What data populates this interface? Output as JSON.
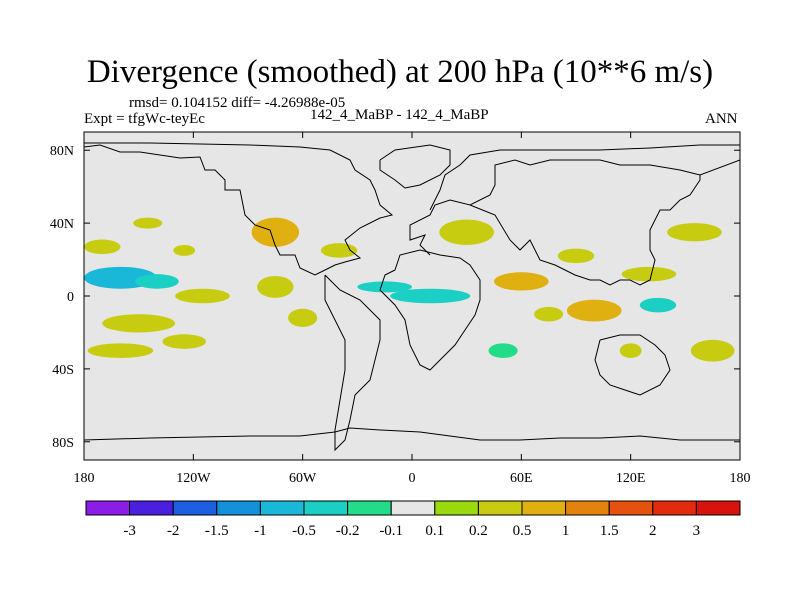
{
  "chart_data": {
    "type": "heatmap",
    "title": "Divergence (smoothed) at 200 hPa (10**6 m/s)",
    "stats_line": "rmsd= 0.104152 diff= -4.26988e-05",
    "experiment": "Expt = tfgWc-teyEc",
    "case_label": "142_4_MaBP - 142_4_MaBP",
    "period": "ANN",
    "x_range": [
      -180,
      180
    ],
    "y_range": [
      -90,
      90
    ],
    "x_ticks": [
      {
        "value": -180,
        "label": "180"
      },
      {
        "value": -120,
        "label": "120W"
      },
      {
        "value": -60,
        "label": "60W"
      },
      {
        "value": 0,
        "label": "0"
      },
      {
        "value": 60,
        "label": "60E"
      },
      {
        "value": 120,
        "label": "120E"
      },
      {
        "value": 180,
        "label": "180"
      }
    ],
    "y_ticks": [
      {
        "value": 80,
        "label": "80N"
      },
      {
        "value": 40,
        "label": "40N"
      },
      {
        "value": 0,
        "label": "0"
      },
      {
        "value": -40,
        "label": "40S"
      },
      {
        "value": -80,
        "label": "80S"
      }
    ],
    "colorbar": {
      "levels": [
        "-3",
        "-2",
        "-1.5",
        "-1",
        "-0.5",
        "-0.2",
        "-0.1",
        "0.1",
        "0.2",
        "0.5",
        "1",
        "1.5",
        "2",
        "3"
      ],
      "colors": [
        "#8a1ee8",
        "#4b1fe0",
        "#1c5fe0",
        "#1491dc",
        "#19b7d8",
        "#1ccfc4",
        "#22dc8a",
        "#e6e6e6",
        "#9ad90e",
        "#c8cc10",
        "#e0b010",
        "#e4820e",
        "#e4520e",
        "#e22a0c",
        "#d8120c"
      ]
    },
    "fields": [
      {
        "lon": -160,
        "lat": 10,
        "rx": 20,
        "ry": 6,
        "value": -0.7
      },
      {
        "lon": -140,
        "lat": 8,
        "rx": 12,
        "ry": 4,
        "value": -0.4
      },
      {
        "lon": -170,
        "lat": 27,
        "rx": 10,
        "ry": 4,
        "value": 0.3
      },
      {
        "lon": -150,
        "lat": -15,
        "rx": 20,
        "ry": 5,
        "value": 0.35
      },
      {
        "lon": -160,
        "lat": -30,
        "rx": 18,
        "ry": 4,
        "value": 0.3
      },
      {
        "lon": -115,
        "lat": 0,
        "rx": 15,
        "ry": 4,
        "value": 0.3
      },
      {
        "lon": -125,
        "lat": -25,
        "rx": 12,
        "ry": 4,
        "value": 0.3
      },
      {
        "lon": -145,
        "lat": 40,
        "rx": 8,
        "ry": 3,
        "value": 0.3
      },
      {
        "lon": -125,
        "lat": 25,
        "rx": 6,
        "ry": 3,
        "value": 0.3
      },
      {
        "lon": -75,
        "lat": 35,
        "rx": 13,
        "ry": 8,
        "value": 0.6
      },
      {
        "lon": -75,
        "lat": 5,
        "rx": 10,
        "ry": 6,
        "value": 0.4
      },
      {
        "lon": -60,
        "lat": -12,
        "rx": 8,
        "ry": 5,
        "value": 0.4
      },
      {
        "lon": -40,
        "lat": 25,
        "rx": 10,
        "ry": 4,
        "value": 0.35
      },
      {
        "lon": -15,
        "lat": 5,
        "rx": 15,
        "ry": 3,
        "value": -0.3
      },
      {
        "lon": 10,
        "lat": 0,
        "rx": 22,
        "ry": 4,
        "value": -0.4
      },
      {
        "lon": 30,
        "lat": 35,
        "rx": 15,
        "ry": 7,
        "value": 0.45
      },
      {
        "lon": 60,
        "lat": 8,
        "rx": 15,
        "ry": 5,
        "value": 0.6
      },
      {
        "lon": 75,
        "lat": -10,
        "rx": 8,
        "ry": 4,
        "value": 0.3
      },
      {
        "lon": 100,
        "lat": -8,
        "rx": 15,
        "ry": 6,
        "value": 0.6
      },
      {
        "lon": 90,
        "lat": 22,
        "rx": 10,
        "ry": 4,
        "value": 0.3
      },
      {
        "lon": 130,
        "lat": 12,
        "rx": 15,
        "ry": 4,
        "value": 0.3
      },
      {
        "lon": 135,
        "lat": -5,
        "rx": 10,
        "ry": 4,
        "value": -0.4
      },
      {
        "lon": 155,
        "lat": 35,
        "rx": 15,
        "ry": 5,
        "value": 0.3
      },
      {
        "lon": 165,
        "lat": -30,
        "rx": 12,
        "ry": 6,
        "value": 0.4
      },
      {
        "lon": 50,
        "lat": -30,
        "rx": 8,
        "ry": 4,
        "value": -0.2
      },
      {
        "lon": 120,
        "lat": -30,
        "rx": 6,
        "ry": 4,
        "value": 0.3
      }
    ]
  }
}
